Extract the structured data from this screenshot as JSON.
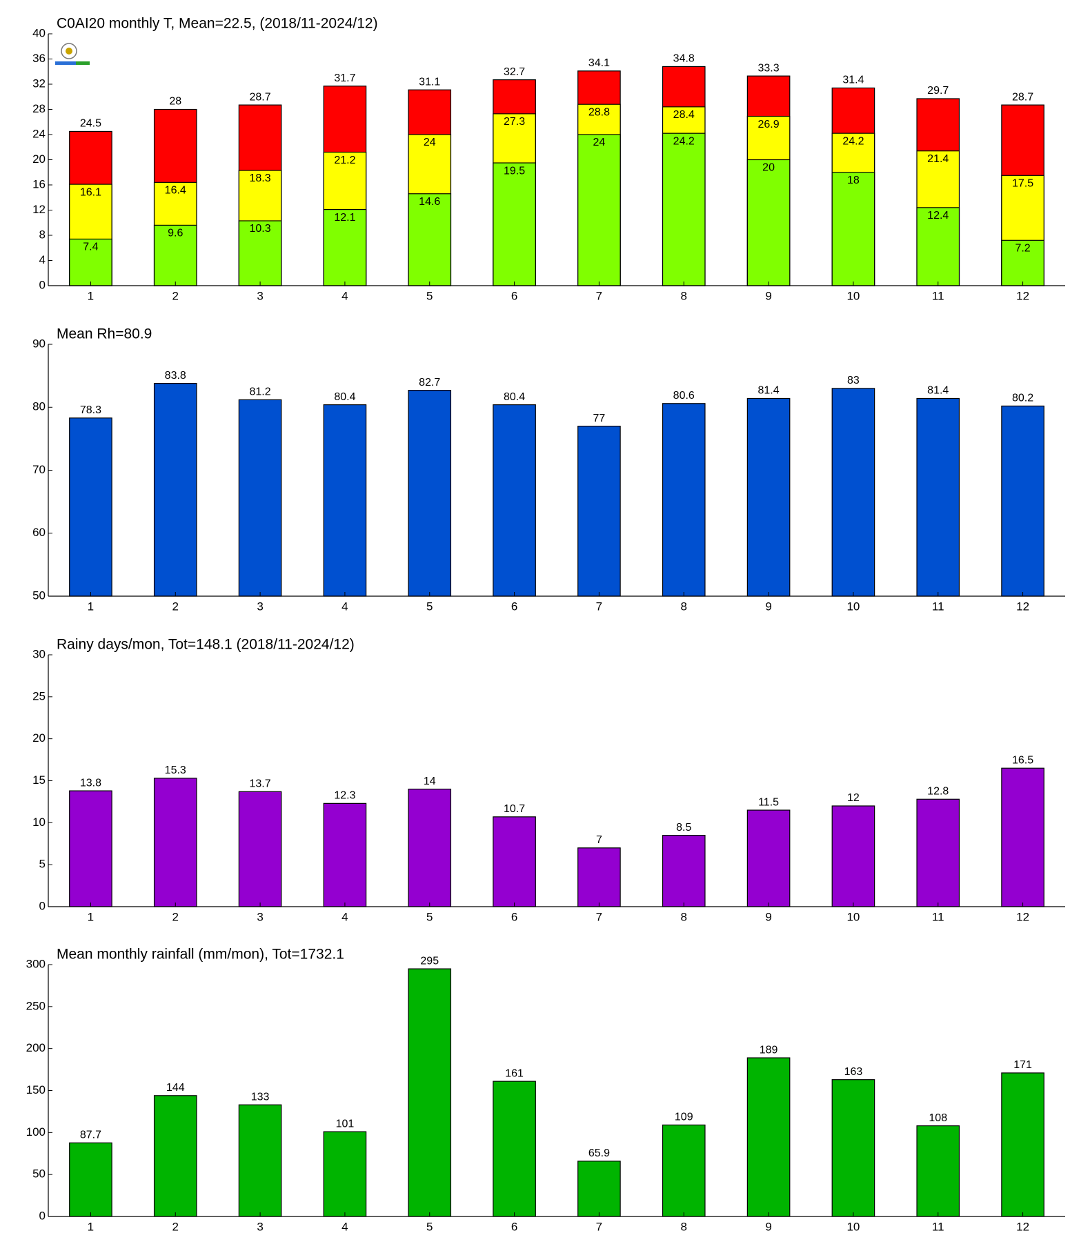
{
  "chart_data": [
    {
      "type": "bar",
      "title": "C0AI20 monthly T, Mean=22.5, (2018/11-2024/12)",
      "categories": [
        "1",
        "2",
        "3",
        "4",
        "5",
        "6",
        "7",
        "8",
        "9",
        "10",
        "11",
        "12"
      ],
      "series": [
        {
          "color": "#ff0000",
          "values": [
            24.5,
            28,
            28.7,
            31.7,
            31.1,
            32.7,
            34.1,
            34.8,
            33.3,
            31.4,
            29.7,
            28.7
          ]
        },
        {
          "color": "#ffff00",
          "values": [
            16.1,
            16.4,
            18.3,
            21.2,
            24,
            27.3,
            28.8,
            28.4,
            26.9,
            24.2,
            21.4,
            17.5
          ]
        },
        {
          "color": "#80ff00",
          "values": [
            7.4,
            9.6,
            10.3,
            12.1,
            14.6,
            19.5,
            24,
            24.2,
            20,
            18,
            12.4,
            7.2
          ]
        }
      ],
      "ylim": [
        0,
        40
      ],
      "yticks": [
        0,
        4,
        8,
        12,
        16,
        20,
        24,
        28,
        32,
        36,
        40
      ]
    },
    {
      "type": "bar",
      "title": "Mean Rh=80.9",
      "categories": [
        "1",
        "2",
        "3",
        "4",
        "5",
        "6",
        "7",
        "8",
        "9",
        "10",
        "11",
        "12"
      ],
      "series": [
        {
          "color": "#0050d0",
          "values": [
            78.3,
            83.8,
            81.2,
            80.4,
            82.7,
            80.4,
            77,
            80.6,
            81.4,
            83,
            81.4,
            80.2
          ]
        }
      ],
      "ylim": [
        50,
        90
      ],
      "yticks": [
        50,
        60,
        70,
        80,
        90
      ]
    },
    {
      "type": "bar",
      "title": "Rainy days/mon, Tot=148.1 (2018/11-2024/12)",
      "categories": [
        "1",
        "2",
        "3",
        "4",
        "5",
        "6",
        "7",
        "8",
        "9",
        "10",
        "11",
        "12"
      ],
      "series": [
        {
          "color": "#9400d0",
          "values": [
            13.8,
            15.3,
            13.7,
            12.3,
            14,
            10.7,
            7,
            8.5,
            11.5,
            12,
            12.8,
            16.5
          ]
        }
      ],
      "ylim": [
        0,
        30
      ],
      "yticks": [
        0,
        5,
        10,
        15,
        20,
        25,
        30
      ]
    },
    {
      "type": "bar",
      "title": "Mean monthly rainfall (mm/mon), Tot=1732.1",
      "categories": [
        "1",
        "2",
        "3",
        "4",
        "5",
        "6",
        "7",
        "8",
        "9",
        "10",
        "11",
        "12"
      ],
      "series": [
        {
          "color": "#00b400",
          "values": [
            87.7,
            144,
            133,
            101,
            295,
            161,
            65.9,
            109,
            189,
            163,
            108,
            171
          ]
        }
      ],
      "ylim": [
        0,
        300
      ],
      "yticks": [
        0,
        50,
        100,
        150,
        200,
        250,
        300
      ]
    }
  ]
}
